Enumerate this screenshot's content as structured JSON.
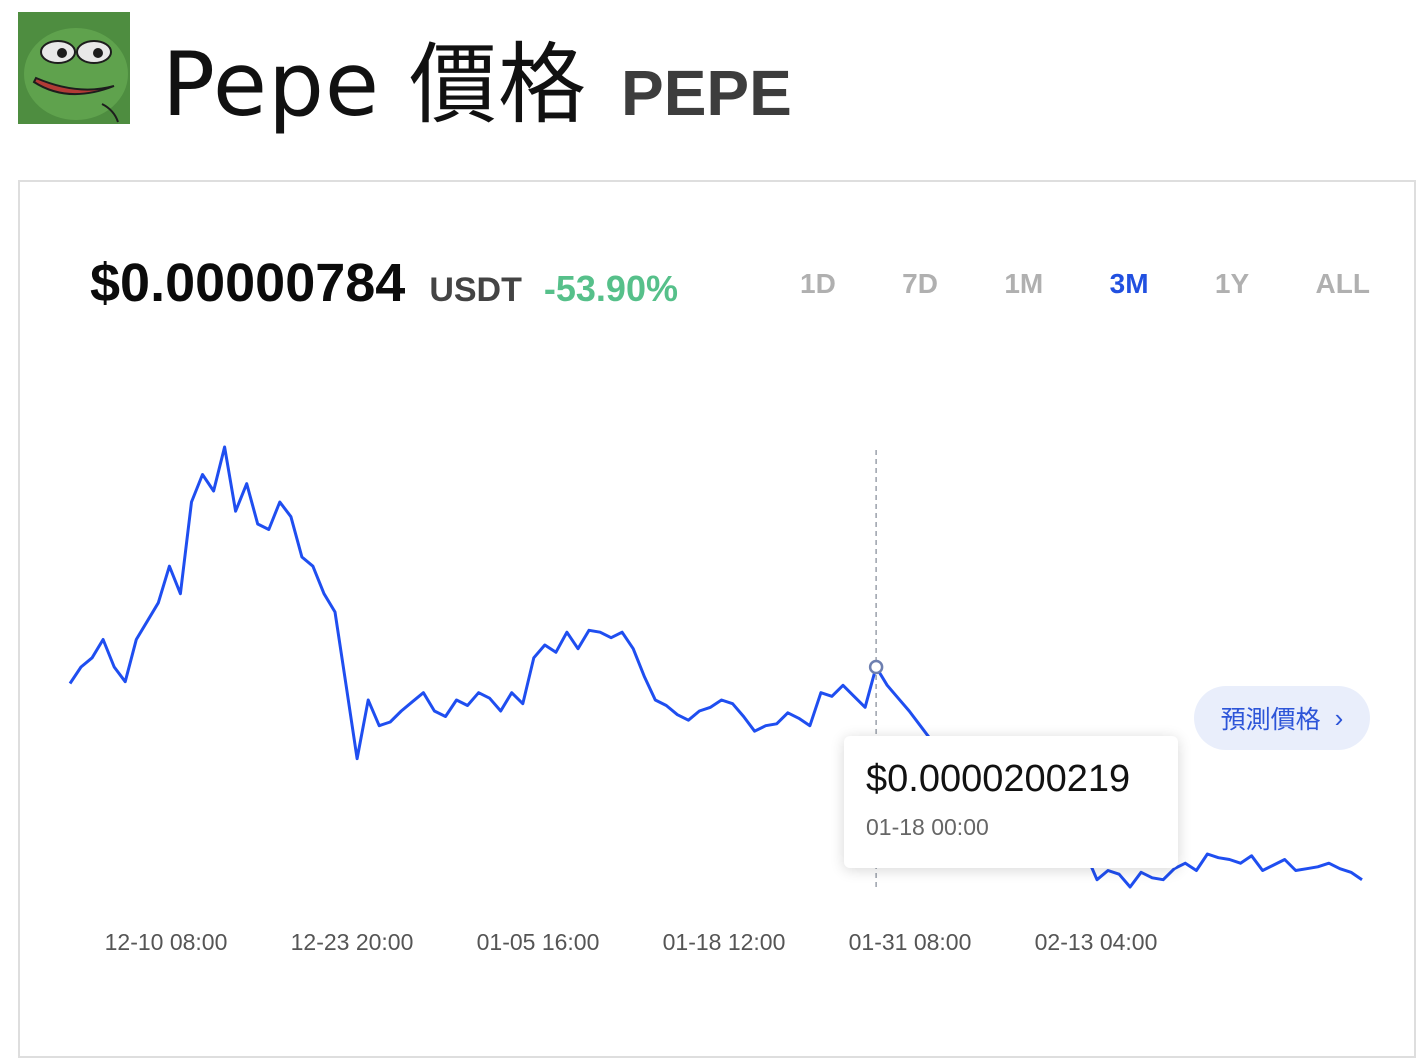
{
  "header": {
    "name": "Pepe 價格",
    "symbol": "PEPE"
  },
  "ticker": {
    "price": "$0.00000784",
    "quote": "USDT",
    "change": "-53.90%"
  },
  "ranges": [
    "1D",
    "7D",
    "1M",
    "3M",
    "1Y",
    "ALL"
  ],
  "active_range": "3M",
  "predict_button": {
    "label": "預測價格",
    "icon": "chevron-right-icon"
  },
  "tooltip": {
    "price": "$0.0000200219",
    "date": "01-18 00:00"
  },
  "colors": {
    "line": "#1f4ef0",
    "accent": "#2150e0",
    "negative_change": "#56c08a",
    "logo_bg": "#4e8d40"
  },
  "chart_data": {
    "type": "line",
    "x_tick_labels": [
      "12-10 08:00",
      "12-23 20:00",
      "01-05 16:00",
      "01-18 12:00",
      "01-31 08:00",
      "02-13 04:00"
    ],
    "grid": false,
    "legend": "none",
    "highlight_index": 73,
    "series": [
      {
        "values": [
          1.91e-05,
          2e-05,
          2.05e-05,
          2.15e-05,
          2e-05,
          1.92e-05,
          2.15e-05,
          2.25e-05,
          2.35e-05,
          2.55e-05,
          2.4e-05,
          2.9e-05,
          3.05e-05,
          2.96e-05,
          3.2e-05,
          2.85e-05,
          3e-05,
          2.78e-05,
          2.75e-05,
          2.9e-05,
          2.82e-05,
          2.6e-05,
          2.55e-05,
          2.4e-05,
          2.3e-05,
          1.9e-05,
          1.5e-05,
          1.82e-05,
          1.68e-05,
          1.7e-05,
          1.76e-05,
          1.81e-05,
          1.86e-05,
          1.76e-05,
          1.73e-05,
          1.82e-05,
          1.79e-05,
          1.86e-05,
          1.83e-05,
          1.76e-05,
          1.86e-05,
          1.8e-05,
          2.05e-05,
          2.12e-05,
          2.08e-05,
          2.19e-05,
          2.1e-05,
          2.2e-05,
          2.19e-05,
          2.16e-05,
          2.19e-05,
          2.1e-05,
          1.95e-05,
          1.82e-05,
          1.79e-05,
          1.74e-05,
          1.71e-05,
          1.76e-05,
          1.78e-05,
          1.82e-05,
          1.8e-05,
          1.73e-05,
          1.65e-05,
          1.68e-05,
          1.69e-05,
          1.75e-05,
          1.72e-05,
          1.68e-05,
          1.86e-05,
          1.84e-05,
          1.9e-05,
          1.84e-05,
          1.78e-05,
          2e-05,
          1.9e-05,
          1.83e-05,
          1.76e-05,
          1.68e-05,
          1.6e-05,
          1.55e-05,
          1.59e-05,
          1.52e-05,
          1.48e-05,
          1.57e-05,
          1.45e-05,
          1.5e-05,
          1.4e-05,
          1.35e-05,
          1.32e-05,
          1.28e-05,
          1.23e-05,
          1.15e-05,
          9.8e-06,
          8.4e-06,
          8.9e-06,
          8.7e-06,
          8e-06,
          8.8e-06,
          8.5e-06,
          8.4e-06,
          9e-06,
          9.3e-06,
          8.9e-06,
          9.8e-06,
          9.6e-06,
          9.5e-06,
          9.3e-06,
          9.7e-06,
          8.9e-06,
          9.2e-06,
          9.5e-06,
          8.9e-06,
          9e-06,
          9.1e-06,
          9.3e-06,
          9e-06,
          8.8e-06,
          8.4e-06
        ]
      }
    ]
  }
}
